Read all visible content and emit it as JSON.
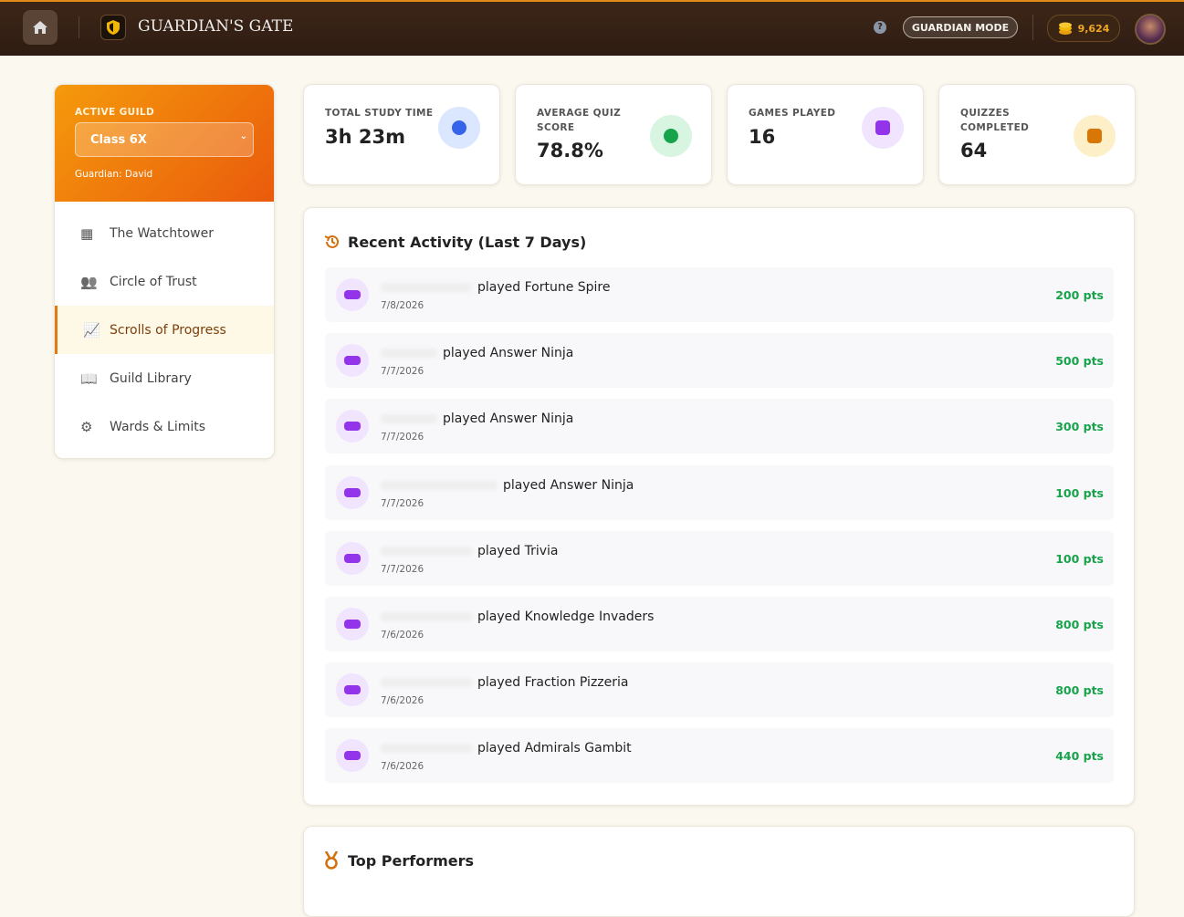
{
  "header": {
    "title": "GUARDIAN'S GATE",
    "help": "?",
    "mode": "GUARDIAN MODE",
    "coins": "9,624"
  },
  "sidebar": {
    "label": "ACTIVE GUILD",
    "guild": "Class 6X",
    "guardian": "Guardian: David",
    "nav": [
      "The Watchtower",
      "Circle of Trust",
      "Scrolls of Progress",
      "Guild Library",
      "Wards & Limits"
    ]
  },
  "stats": [
    {
      "label": "TOTAL STUDY TIME",
      "value": "3h 23m"
    },
    {
      "label": "AVERAGE QUIZ SCORE",
      "value": "78.8%"
    },
    {
      "label": "GAMES PLAYED",
      "value": "16"
    },
    {
      "label": "QUIZZES COMPLETED",
      "value": "64"
    }
  ],
  "activity": {
    "title": "Recent Activity (Last 7 Days)",
    "items": [
      {
        "text": "played Fortune Spire",
        "date": "7/8/2026",
        "points": "200 pts"
      },
      {
        "text": "played Answer Ninja",
        "date": "7/7/2026",
        "points": "500 pts"
      },
      {
        "text": "played Answer Ninja",
        "date": "7/7/2026",
        "points": "300 pts"
      },
      {
        "text": "played Answer Ninja",
        "date": "7/7/2026",
        "points": "100 pts"
      },
      {
        "text": "played Trivia",
        "date": "7/7/2026",
        "points": "100 pts"
      },
      {
        "text": "played Knowledge Invaders",
        "date": "7/6/2026",
        "points": "800 pts"
      },
      {
        "text": "played Fraction Pizzeria",
        "date": "7/6/2026",
        "points": "800 pts"
      },
      {
        "text": "played Admirals Gambit",
        "date": "7/6/2026",
        "points": "440 pts"
      }
    ]
  },
  "performers": {
    "title": "Top Performers"
  }
}
